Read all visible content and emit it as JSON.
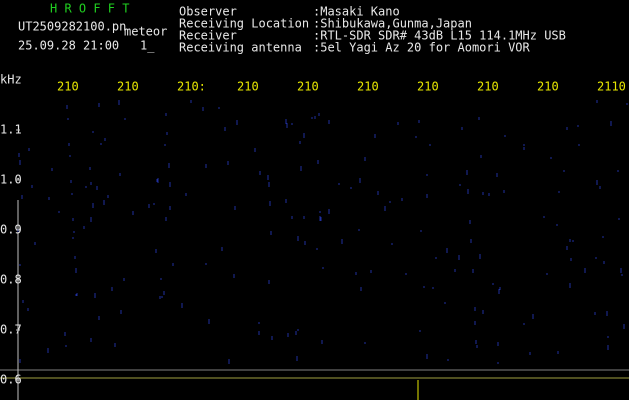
{
  "header": {
    "app": "H R O F F T",
    "file": "UT2509282100.pn",
    "mode": "meteor",
    "datetime": "25.09.28 21:00",
    "count": "1_"
  },
  "info": [
    {
      "label": "Observer",
      "value": ":Masaki Kano"
    },
    {
      "label": "Receiving Location",
      "value": ":Shibukawa,Gunma,Japan"
    },
    {
      "label": "Receiver",
      "value": ":RTL-SDR SDR# 43dB L15 114.1MHz USB"
    },
    {
      "label": "Receiving antenna",
      "value": ":5el Yagi Az 20 for Aomori VOR"
    }
  ],
  "x_labels": [
    "210",
    "210",
    "210:",
    "210",
    "210",
    "210",
    "210",
    "210",
    "210",
    "2110"
  ],
  "y_unit": "kHz",
  "y_labels": [
    "1.1",
    "1.0",
    "0.9",
    "0.8",
    "0.7",
    "0.6"
  ]
}
